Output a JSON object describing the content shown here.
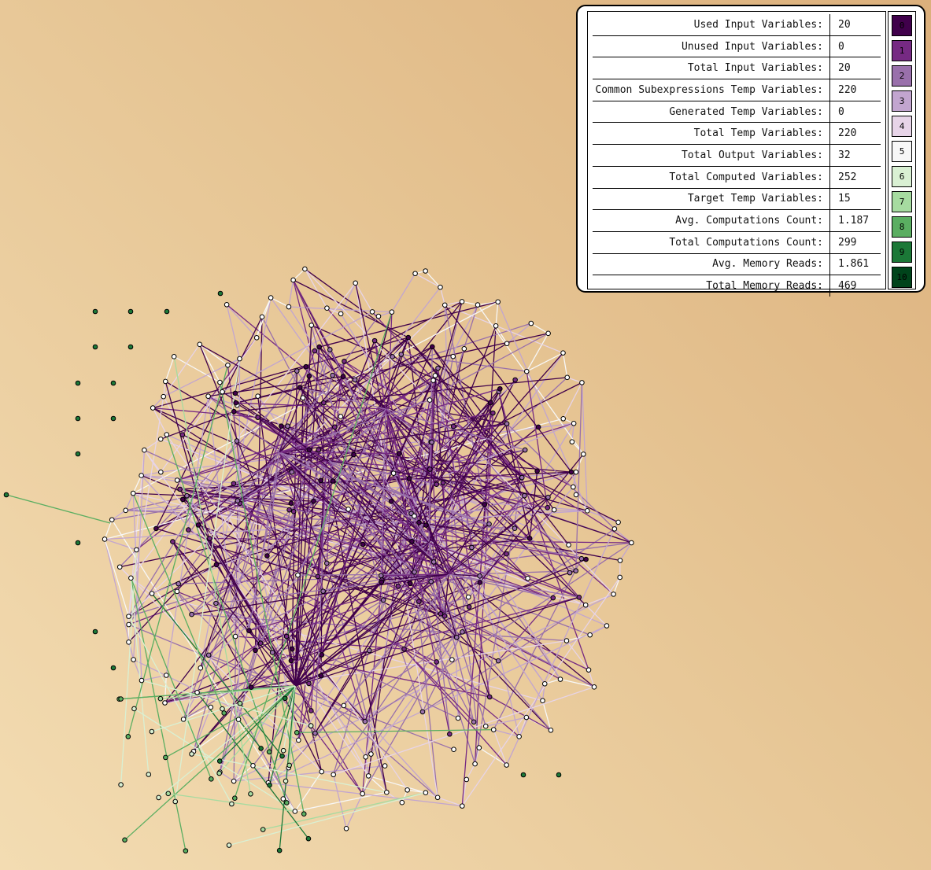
{
  "stats": [
    {
      "label": "Used Input Variables:",
      "value": "20"
    },
    {
      "label": "Unused Input Variables:",
      "value": "0"
    },
    {
      "label": "Total Input Variables:",
      "value": "20"
    },
    {
      "label": "Common Subexpressions Temp Variables:",
      "value": "220"
    },
    {
      "label": "Generated Temp Variables:",
      "value": "0"
    },
    {
      "label": "Total Temp Variables:",
      "value": "220"
    },
    {
      "label": "Total Output Variables:",
      "value": "32"
    },
    {
      "label": "Total Computed Variables:",
      "value": "252"
    },
    {
      "label": "Target Temp Variables:",
      "value": "15"
    },
    {
      "label": "Avg. Computations Count:",
      "value": "1.187"
    },
    {
      "label": "Total Computations Count:",
      "value": "299"
    },
    {
      "label": "Avg. Memory Reads:",
      "value": "1.861"
    },
    {
      "label": "Total Memory Reads:",
      "value": "469"
    }
  ],
  "color_scale": [
    {
      "label": "0",
      "color": "#40004b"
    },
    {
      "label": "1",
      "color": "#762a83"
    },
    {
      "label": "2",
      "color": "#9970ab"
    },
    {
      "label": "3",
      "color": "#c2a5cf"
    },
    {
      "label": "4",
      "color": "#e7d4e8"
    },
    {
      "label": "5",
      "color": "#f7f7f7"
    },
    {
      "label": "6",
      "color": "#d9f0d3"
    },
    {
      "label": "7",
      "color": "#a6dba0"
    },
    {
      "label": "8",
      "color": "#5aae61"
    },
    {
      "label": "9",
      "color": "#1b7837"
    },
    {
      "label": "10",
      "color": "#00441b"
    }
  ]
}
